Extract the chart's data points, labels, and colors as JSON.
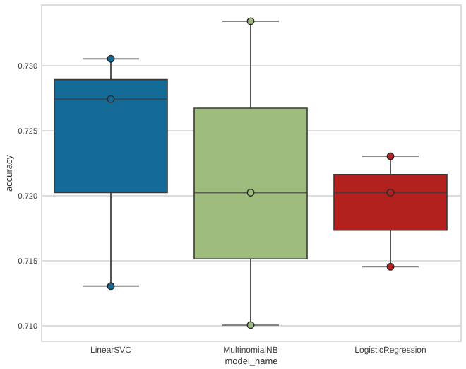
{
  "chart_data": {
    "type": "box",
    "xlabel": "model_name",
    "ylabel": "accuracy",
    "categories": [
      "LinearSVC",
      "MultinomialNB",
      "LogisticRegression"
    ],
    "series": [
      {
        "type": "box",
        "colors": [
          "#146b98",
          "#9dbc7e",
          "#b2211e"
        ],
        "boxes": [
          {
            "low": 0.713,
            "q1": 0.7202,
            "median": 0.7274,
            "q3": 0.7289,
            "high": 0.7305
          },
          {
            "low": 0.71,
            "q1": 0.7151,
            "median": 0.7202,
            "q3": 0.7267,
            "high": 0.7334
          },
          {
            "low": 0.7145,
            "q1": 0.7173,
            "median": 0.7202,
            "q3": 0.7216,
            "high": 0.723
          }
        ]
      },
      {
        "type": "scatter",
        "x": [
          "LinearSVC",
          "LinearSVC",
          "LinearSVC",
          "MultinomialNB",
          "MultinomialNB",
          "MultinomialNB",
          "LogisticRegression",
          "LogisticRegression",
          "LogisticRegression"
        ],
        "values": [
          0.7305,
          0.7274,
          0.713,
          0.7334,
          0.7202,
          0.71,
          0.723,
          0.7202,
          0.7145
        ],
        "colors": [
          "#146b98",
          "#146b98",
          "#146b98",
          "#9dbc7e",
          "#9dbc7e",
          "#9dbc7e",
          "#b2211e",
          "#b2211e",
          "#b2211e"
        ]
      }
    ],
    "ylim": [
      0.7088,
      0.7347
    ],
    "yticks": [
      {
        "value": 0.71,
        "label": "0.710"
      },
      {
        "value": 0.715,
        "label": "0.715"
      },
      {
        "value": 0.72,
        "label": "0.720"
      },
      {
        "value": 0.725,
        "label": "0.725"
      },
      {
        "value": 0.73,
        "label": "0.730"
      }
    ],
    "grid": "y",
    "marker": "circle"
  }
}
